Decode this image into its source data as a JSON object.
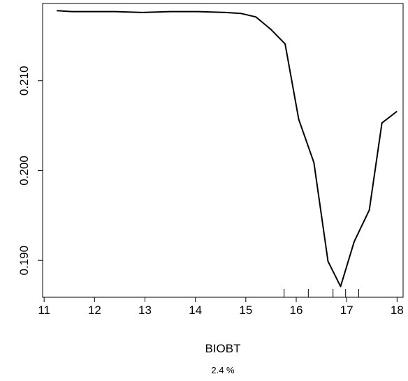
{
  "chart_data": {
    "type": "line",
    "xlabel": "BIOBT",
    "subtitle": "2.4 %",
    "ylabel": "",
    "xlim": [
      10.97,
      18.12
    ],
    "ylim": [
      0.1859,
      0.2186
    ],
    "x_ticks": [
      11,
      12,
      13,
      14,
      15,
      16,
      17,
      18
    ],
    "y_ticks": [
      0.19,
      0.2,
      0.21
    ],
    "x_tick_labels": [
      "11",
      "12",
      "13",
      "14",
      "15",
      "16",
      "17",
      "18"
    ],
    "y_tick_labels": [
      "0.190",
      "0.200",
      "0.210"
    ],
    "series": [
      {
        "x": [
          11.25,
          11.55,
          11.9,
          12.4,
          12.95,
          13.5,
          14.05,
          14.6,
          14.9,
          15.2,
          15.5,
          15.78,
          16.05,
          16.35,
          16.63,
          16.88,
          17.15,
          17.45,
          17.7,
          18.0
        ],
        "y": [
          0.2178,
          0.2177,
          0.2177,
          0.2177,
          0.2176,
          0.2177,
          0.2177,
          0.2176,
          0.2175,
          0.2171,
          0.2157,
          0.2141,
          0.2057,
          0.2009,
          0.1899,
          0.1871,
          0.1921,
          0.1956,
          0.2053,
          0.2066
        ],
        "color": "#000000"
      }
    ],
    "rug": [
      15.76,
      16.24,
      16.73,
      16.98,
      17.24
    ],
    "grid": false
  }
}
